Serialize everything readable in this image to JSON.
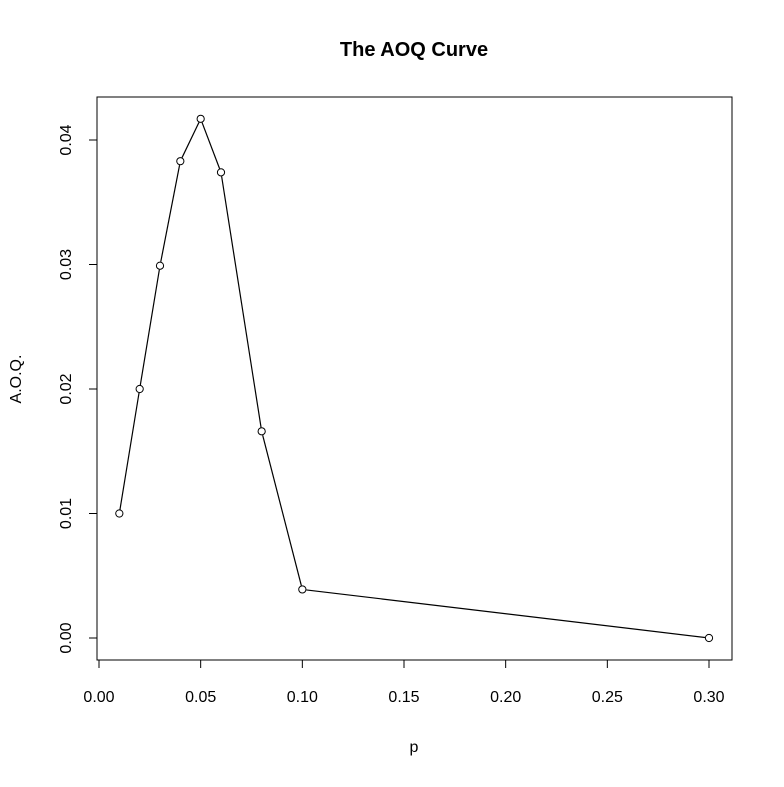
{
  "chart_data": {
    "type": "line",
    "title": "The AOQ Curve",
    "xlabel": "p",
    "ylabel": "A.O.Q.",
    "xlim": [
      0.0,
      0.3
    ],
    "ylim": [
      0.0,
      0.04
    ],
    "xticks": [
      "0.00",
      "0.05",
      "0.10",
      "0.15",
      "0.20",
      "0.25",
      "0.30"
    ],
    "yticks": [
      "0.00",
      "0.01",
      "0.02",
      "0.03",
      "0.04"
    ],
    "grid": false,
    "marker": "open-circle",
    "series": [
      {
        "x": [
          0.01,
          0.02,
          0.03,
          0.04,
          0.05,
          0.06,
          0.08,
          0.1,
          0.3
        ],
        "y": [
          0.01,
          0.02,
          0.0299,
          0.0383,
          0.0417,
          0.0374,
          0.0166,
          0.0039,
          0.0
        ]
      }
    ]
  }
}
